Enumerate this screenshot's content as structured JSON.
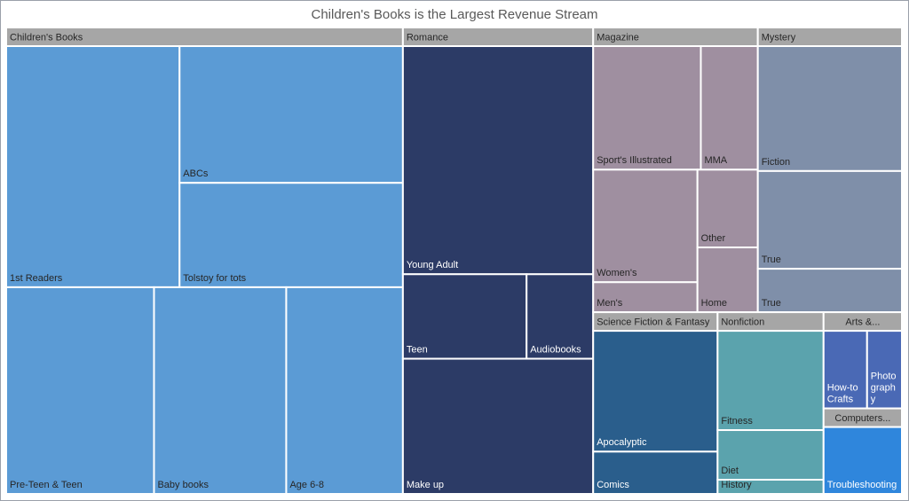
{
  "chart_data": {
    "type": "treemap",
    "title": "Children's Books is the Largest Revenue Stream",
    "groups": [
      {
        "name": "Children's Books",
        "color": "#5b9bd5",
        "categories": [
          "1st Readers",
          "ABCs",
          "Tolstoy for tots",
          "Pre-Teen & Teen",
          "Baby books",
          "Age 6-8"
        ],
        "values": [
          52,
          38,
          29,
          38,
          34,
          30
        ]
      },
      {
        "name": "Romance",
        "color": "#2c3b66",
        "categories": [
          "Young Adult",
          "Teen",
          "Audiobooks",
          "Make up"
        ],
        "values": [
          54,
          13,
          7,
          32
        ]
      },
      {
        "name": "Magazine",
        "color": "#9f8fa0",
        "categories": [
          "Sport's Illustrated",
          "MMA",
          "Women's",
          "Men's",
          "Other",
          "Home"
        ],
        "values": [
          17,
          9,
          15,
          4,
          6,
          5
        ]
      },
      {
        "name": "Mystery",
        "color": "#7f8fa9",
        "categories": [
          "Fiction",
          "True",
          "True"
        ],
        "values": [
          23,
          18,
          8
        ]
      },
      {
        "name": "Science Fiction & Fantasy",
        "color": "#2a5e8c",
        "categories": [
          "Apocalyptic",
          "Comics"
        ],
        "values": [
          20,
          7
        ]
      },
      {
        "name": "Nonfiction",
        "color": "#5ba3ad",
        "categories": [
          "Fitness",
          "Diet",
          "History"
        ],
        "values": [
          14,
          7,
          2
        ]
      },
      {
        "name": "Arts &...",
        "color": "#4a69b5",
        "categories": [
          "How-to Crafts",
          "Photography"
        ],
        "values": [
          5,
          4
        ]
      },
      {
        "name": "Computers...",
        "color": "#2f86dc",
        "categories": [
          "Troubleshooting"
        ],
        "values": [
          8
        ]
      }
    ]
  }
}
